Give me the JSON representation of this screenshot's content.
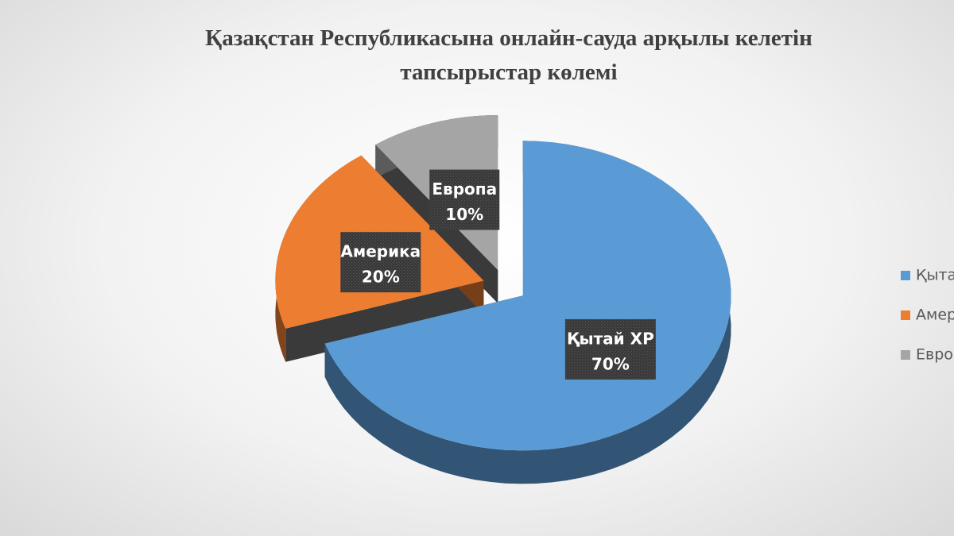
{
  "chart_data": {
    "type": "pie",
    "title": [
      "Қазақстан Республикасына онлайн-сауда арқылы келетін",
      "тапсырыстар көлемі"
    ],
    "categories": [
      "Қытай ХР",
      "Америка",
      "Европа"
    ],
    "values": [
      70,
      20,
      10
    ],
    "value_labels": [
      "70%",
      "20%",
      "10%"
    ],
    "colors": [
      "#5b9bd5",
      "#ed7d31",
      "#a5a5a5"
    ],
    "legend": "right"
  }
}
